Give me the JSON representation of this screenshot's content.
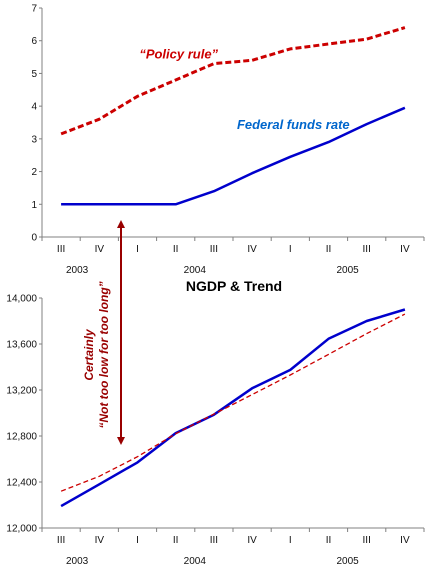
{
  "chart_data": [
    {
      "type": "line",
      "x": [
        "III",
        "IV",
        "I",
        "II",
        "III",
        "IV",
        "I",
        "II",
        "III",
        "IV"
      ],
      "x_groups": [
        {
          "label": "2003",
          "start": 0,
          "end": 1
        },
        {
          "label": "2004",
          "start": 2,
          "end": 5
        },
        {
          "label": "2005",
          "start": 6,
          "end": 9
        }
      ],
      "ylim": [
        0,
        7
      ],
      "yticks": [
        0,
        1,
        2,
        3,
        4,
        5,
        6,
        7
      ],
      "grid": false,
      "series": [
        {
          "name": "“Policy rule”",
          "style": "dashed",
          "color": "#cc0000",
          "values": [
            3.15,
            3.6,
            4.3,
            4.8,
            5.3,
            5.4,
            5.75,
            5.9,
            6.05,
            6.4
          ]
        },
        {
          "name": "Federal funds rate",
          "style": "solid",
          "color": "#0000cc",
          "values": [
            1.0,
            1.0,
            1.0,
            1.0,
            1.4,
            1.95,
            2.45,
            2.9,
            3.45,
            3.95
          ]
        }
      ]
    },
    {
      "type": "line",
      "title": "NGDP & Trend",
      "x": [
        "III",
        "IV",
        "I",
        "II",
        "III",
        "IV",
        "I",
        "II",
        "III",
        "IV"
      ],
      "x_groups": [
        {
          "label": "2003",
          "start": 0,
          "end": 1
        },
        {
          "label": "2004",
          "start": 2,
          "end": 5
        },
        {
          "label": "2005",
          "start": 6,
          "end": 9
        }
      ],
      "ylim": [
        12000,
        14000
      ],
      "yticks": [
        12000,
        12400,
        12800,
        13200,
        13600,
        14000
      ],
      "ytick_labels": [
        "12,000",
        "12,400",
        "12,800",
        "13,200",
        "13,600",
        "14,000"
      ],
      "grid": false,
      "series": [
        {
          "style": "solid",
          "color": "#0000cc",
          "values": [
            12190,
            12380,
            12570,
            12825,
            12985,
            13215,
            13375,
            13645,
            13800,
            13900
          ]
        },
        {
          "style": "dashed",
          "color": "#cc0000",
          "values": [
            12320,
            12450,
            12620,
            12820,
            12990,
            13160,
            13330,
            13510,
            13690,
            13860
          ]
        }
      ]
    }
  ],
  "annotation": {
    "line1": "Certainly",
    "line2": "“Not too low for too long”",
    "color": "#990000"
  }
}
